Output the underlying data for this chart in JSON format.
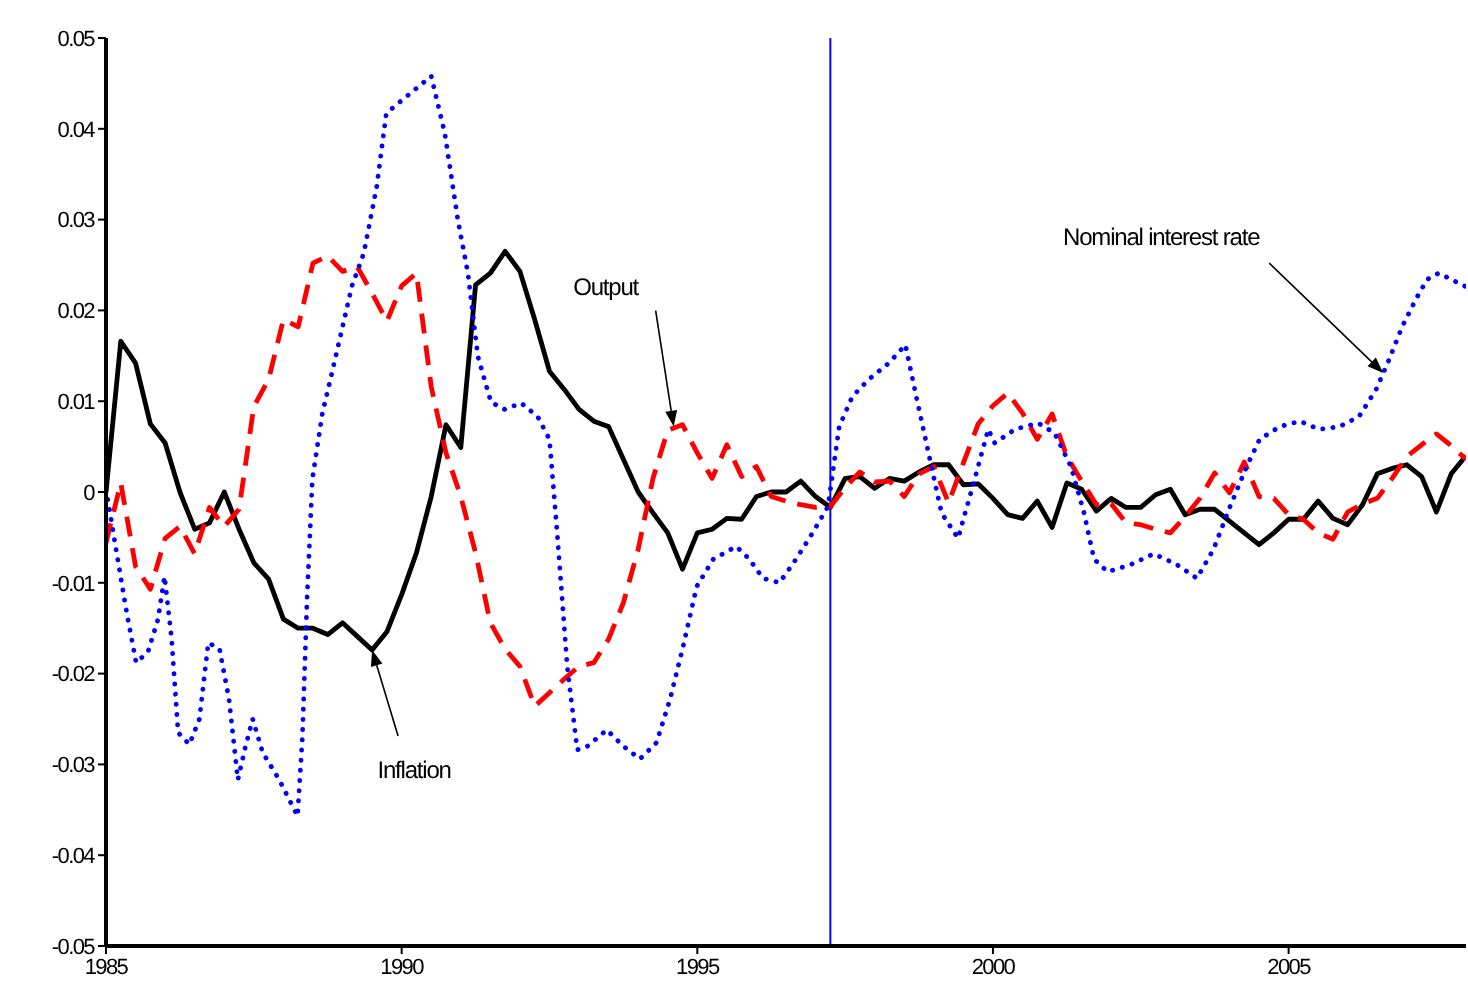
{
  "chart_data": {
    "type": "line",
    "xlim": [
      1985,
      2008
    ],
    "xticks": [
      1985,
      1990,
      1995,
      2000,
      2005
    ],
    "ylim": [
      -0.05,
      0.05
    ],
    "yticks": [
      -0.05,
      -0.04,
      -0.03,
      -0.02,
      -0.01,
      0,
      0.01,
      0.02,
      0.03,
      0.04,
      0.05
    ],
    "marker": "none",
    "series": [
      {
        "color": "#000000",
        "line_style": "solid",
        "x": [
          1985,
          1985.25,
          1985.5,
          1985.75,
          1986,
          1986.25,
          1986.5,
          1986.75,
          1987,
          1987.25,
          1987.5,
          1987.75,
          1988,
          1988.25,
          1988.5,
          1988.75,
          1989,
          1989.25,
          1989.5,
          1989.75,
          1990,
          1990.25,
          1990.5,
          1990.75,
          1991,
          1991.25,
          1991.5,
          1991.75,
          1992,
          1992.25,
          1992.5,
          1992.75,
          1993,
          1993.25,
          1993.5,
          1993.75,
          1994,
          1994.25,
          1994.5,
          1994.75,
          1995,
          1995.25,
          1995.5,
          1995.75,
          1996,
          1996.25,
          1996.5,
          1996.75,
          1997,
          1997.25,
          1997.5,
          1997.75,
          1998,
          1998.25,
          1998.5,
          1998.75,
          1999,
          1999.25,
          1999.5,
          1999.75,
          2000,
          2000.25,
          2000.5,
          2000.75,
          2001,
          2001.25,
          2001.5,
          2001.75,
          2002,
          2002.25,
          2002.5,
          2002.75,
          2003,
          2003.25,
          2003.5,
          2003.75,
          2004,
          2004.25,
          2004.5,
          2004.75,
          2005,
          2005.25,
          2005.5,
          2005.75,
          2006,
          2006.25,
          2006.5,
          2006.75,
          2007,
          2007.25,
          2007.5,
          2007.75,
          2008
        ],
        "values": [
          0,
          0.0166,
          0.0142,
          0.0075,
          0.0054,
          0,
          -0.0041,
          -0.0034,
          0,
          -0.0041,
          -0.0078,
          -0.0096,
          -0.014,
          -0.015,
          -0.015,
          -0.0157,
          -0.0144,
          -0.0159,
          -0.0174,
          -0.0154,
          -0.0113,
          -0.0067,
          -0.0005,
          0.0074,
          0.0049,
          0.0228,
          0.0241,
          0.0265,
          0.0243,
          0.019,
          0.0133,
          0.0113,
          0.0091,
          0.0078,
          0.0072,
          0.0036,
          0,
          -0.0023,
          -0.0045,
          -0.0085,
          -0.0045,
          -0.0041,
          -0.0029,
          -0.003,
          -0.0005,
          0,
          0,
          0.0012,
          -0.0005,
          -0.0017,
          0.0015,
          0.0017,
          0.0004,
          0.0015,
          0.0012,
          0.0022,
          0.003,
          0.003,
          0.0008,
          0.0009,
          -0.0007,
          -0.0025,
          -0.0029,
          -0.001,
          -0.0039,
          0.001,
          0.0003,
          -0.0021,
          -0.0007,
          -0.0017,
          -0.0017,
          -0.0003,
          0.0003,
          -0.0025,
          -0.0019,
          -0.0019,
          -0.0032,
          -0.0045,
          -0.0058,
          -0.0045,
          -0.003,
          -0.003,
          -0.001,
          -0.0029,
          -0.0036,
          -0.0014,
          0.002,
          0.0026,
          0.003,
          0.0017,
          -0.0022,
          0.002,
          0.004
        ]
      },
      {
        "color": "#ff0000",
        "line_style": "dashed",
        "x": [
          1985,
          1985.25,
          1985.5,
          1985.75,
          1986,
          1986.25,
          1986.5,
          1986.75,
          1987,
          1987.25,
          1987.5,
          1987.75,
          1988,
          1988.25,
          1988.5,
          1988.75,
          1989,
          1989.25,
          1989.5,
          1989.75,
          1990,
          1990.25,
          1990.5,
          1990.75,
          1991,
          1991.25,
          1991.5,
          1991.75,
          1992,
          1992.25,
          1992.5,
          1992.75,
          1993,
          1993.25,
          1993.5,
          1993.75,
          1994,
          1994.25,
          1994.5,
          1994.75,
          1995,
          1995.25,
          1995.5,
          1995.75,
          1996,
          1996.25,
          1996.5,
          1996.75,
          1997,
          1997.25,
          1997.5,
          1997.75,
          1998,
          1998.25,
          1998.5,
          1998.75,
          1999,
          1999.25,
          1999.5,
          1999.75,
          2000,
          2000.25,
          2000.5,
          2000.75,
          2001,
          2001.25,
          2001.5,
          2001.75,
          2002,
          2002.25,
          2002.5,
          2002.75,
          2003,
          2003.25,
          2003.5,
          2003.75,
          2004,
          2004.25,
          2004.5,
          2004.75,
          2005,
          2005.25,
          2005.5,
          2005.75,
          2006,
          2006.25,
          2006.5,
          2006.75,
          2007,
          2007.25,
          2007.5,
          2007.75,
          2008
        ],
        "values": [
          -0.0056,
          0.001,
          -0.0082,
          -0.0107,
          -0.0051,
          -0.0038,
          -0.0068,
          -0.0017,
          -0.0038,
          -0.0019,
          0.0094,
          0.0124,
          0.019,
          0.0182,
          0.0252,
          0.026,
          0.0243,
          0.0248,
          0.0219,
          0.0188,
          0.0227,
          0.0241,
          0.0116,
          0.0043,
          -0.0005,
          -0.0067,
          -0.0144,
          -0.0173,
          -0.0192,
          -0.0236,
          -0.0221,
          -0.0206,
          -0.0192,
          -0.0188,
          -0.0162,
          -0.0122,
          -0.0063,
          0.0015,
          0.0068,
          0.0074,
          0.0043,
          0.0015,
          0.0052,
          0.0017,
          0.0028,
          -0.0005,
          -0.001,
          -0.0014,
          -0.0017,
          -0.0016,
          0.0005,
          0.0022,
          0.0011,
          0.0012,
          -0.0005,
          0.002,
          0.0028,
          -0.0012,
          0.0032,
          0.0075,
          0.0095,
          0.0109,
          0.0087,
          0.0058,
          0.0086,
          0.0039,
          0.0012,
          -0.0014,
          -0.0013,
          -0.0034,
          -0.0036,
          -0.0041,
          -0.0045,
          -0.0027,
          -0.0007,
          0.0021,
          -0.0001,
          0.0033,
          -0.0005,
          -0.0007,
          -0.0025,
          -0.003,
          -0.0045,
          -0.0052,
          -0.0022,
          -0.0013,
          -0.0007,
          0.0015,
          0.0039,
          0.0052,
          0.0064,
          0.0051,
          0.0036
        ]
      },
      {
        "color": "#0000ff",
        "line_style": "dotted",
        "x": [
          1985,
          1985.18,
          1985.35,
          1985.51,
          1985.71,
          1985.88,
          1985.99,
          1986.11,
          1986.22,
          1986.41,
          1986.58,
          1986.73,
          1986.92,
          1987.08,
          1987.23,
          1987.36,
          1987.48,
          1987.65,
          1987.93,
          1988.24,
          1988.32,
          1988.4,
          1988.49,
          1988.66,
          1988.82,
          1988.99,
          1989.16,
          1989.36,
          1989.58,
          1989.74,
          1989.94,
          1990.22,
          1990.5,
          1990.73,
          1990.95,
          1991.12,
          1991.29,
          1991.51,
          1991.74,
          1992.02,
          1992.3,
          1992.5,
          1992.63,
          1992.8,
          1992.97,
          1993.14,
          1993.47,
          1993.75,
          1994.03,
          1994.31,
          1994.54,
          1994.76,
          1994.99,
          1995.27,
          1995.66,
          1995.88,
          1996.11,
          1996.39,
          1996.67,
          1996.95,
          1997.21,
          1997.4,
          1997.62,
          1997.9,
          1998.24,
          1998.52,
          1998.69,
          1998.91,
          1999.13,
          1999.41,
          1999.69,
          1999.92,
          2000.03,
          2000.37,
          2000.76,
          2001.04,
          2001.32,
          2001.54,
          2001.71,
          2001.94,
          2002.33,
          2002.72,
          2003.11,
          2003.45,
          2003.73,
          2004.01,
          2004.29,
          2004.51,
          2004.85,
          2005.19,
          2005.52,
          2005.86,
          2006.19,
          2006.48,
          2006.7,
          2006.92,
          2007.15,
          2007.34,
          2007.54,
          2008
        ],
        "values": [
          0.0003,
          -0.0067,
          -0.0133,
          -0.0188,
          -0.0176,
          -0.014,
          -0.0093,
          -0.0162,
          -0.0265,
          -0.0278,
          -0.025,
          -0.0166,
          -0.0173,
          -0.0228,
          -0.0317,
          -0.028,
          -0.025,
          -0.0287,
          -0.0317,
          -0.0357,
          -0.0272,
          -0.0118,
          0.0014,
          0.0087,
          0.0131,
          0.0179,
          0.0227,
          0.0263,
          0.0337,
          0.0417,
          0.0428,
          0.0443,
          0.0458,
          0.0395,
          0.03,
          0.0241,
          0.0149,
          0.0099,
          0.0091,
          0.0098,
          0.0083,
          0.0058,
          -0.0045,
          -0.0192,
          -0.0284,
          -0.028,
          -0.0262,
          -0.028,
          -0.0294,
          -0.0276,
          -0.0228,
          -0.017,
          -0.0104,
          -0.0074,
          -0.006,
          -0.0074,
          -0.0095,
          -0.01,
          -0.0074,
          -0.0045,
          -0.0016,
          0.0072,
          0.0105,
          0.0124,
          0.0142,
          0.0162,
          0.0109,
          0.0043,
          -0.0023,
          -0.0051,
          0.0014,
          0.0069,
          0.0054,
          0.0069,
          0.0076,
          0.0065,
          0.0028,
          -0.0023,
          -0.0074,
          -0.0088,
          -0.008,
          -0.0068,
          -0.008,
          -0.0095,
          -0.0063,
          -0.0016,
          0.0028,
          0.0058,
          0.0072,
          0.0078,
          0.0069,
          0.0072,
          0.0083,
          0.0113,
          0.0146,
          0.0182,
          0.0212,
          0.0234,
          0.0241,
          0.0226
        ]
      }
    ],
    "ref_lines": [
      {
        "axis": "x",
        "value": 1997.25,
        "color": "#0000ff"
      }
    ],
    "annotations": [
      {
        "text": "Inflation",
        "x": 1989.5,
        "y": -0.0174
      },
      {
        "text": "Output",
        "x": 1994.6,
        "y": 0.0072
      },
      {
        "text": "Nominal interest rate",
        "x": 2006.6,
        "y": 0.0131
      }
    ]
  }
}
